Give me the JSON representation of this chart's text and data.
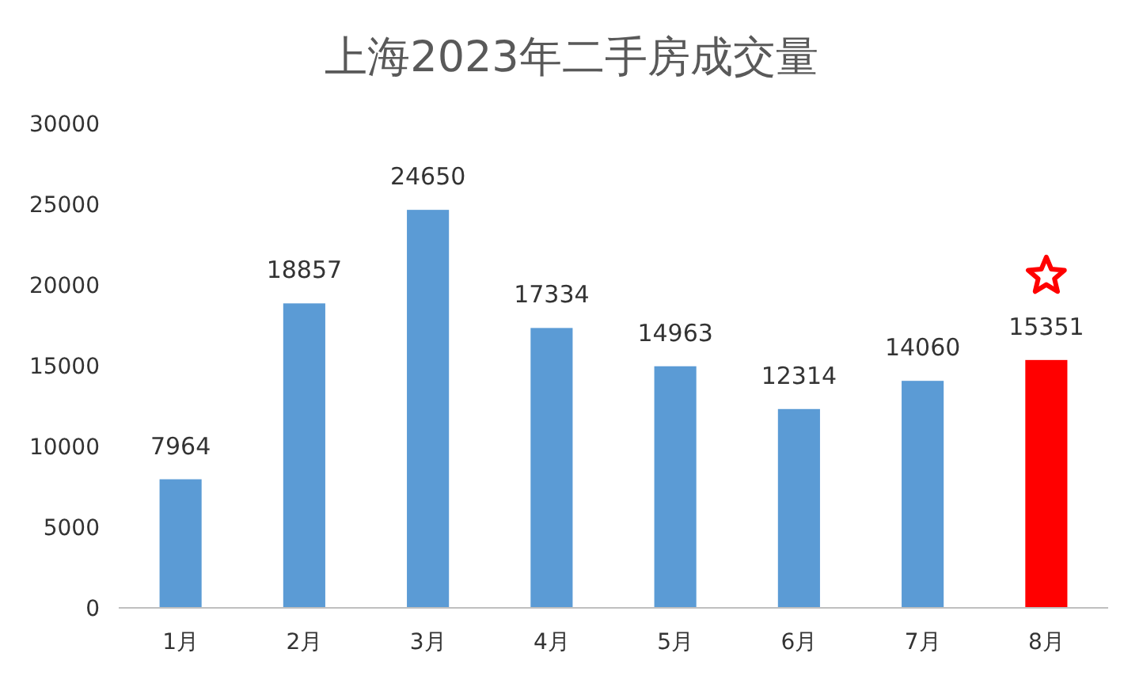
{
  "chart_data": {
    "type": "bar",
    "title": "上海2023年二手房成交量",
    "categories": [
      "1月",
      "2月",
      "3月",
      "4月",
      "5月",
      "6月",
      "7月",
      "8月"
    ],
    "values": [
      7964,
      18857,
      24650,
      17334,
      14963,
      12314,
      14060,
      15351
    ],
    "colors": [
      "#5b9bd5",
      "#5b9bd5",
      "#5b9bd5",
      "#5b9bd5",
      "#5b9bd5",
      "#5b9bd5",
      "#5b9bd5",
      "#ff0000"
    ],
    "ylim": [
      0,
      30000
    ],
    "yticks": [
      0,
      5000,
      10000,
      15000,
      20000,
      25000,
      30000
    ],
    "data_labels": true,
    "grid": false
  }
}
